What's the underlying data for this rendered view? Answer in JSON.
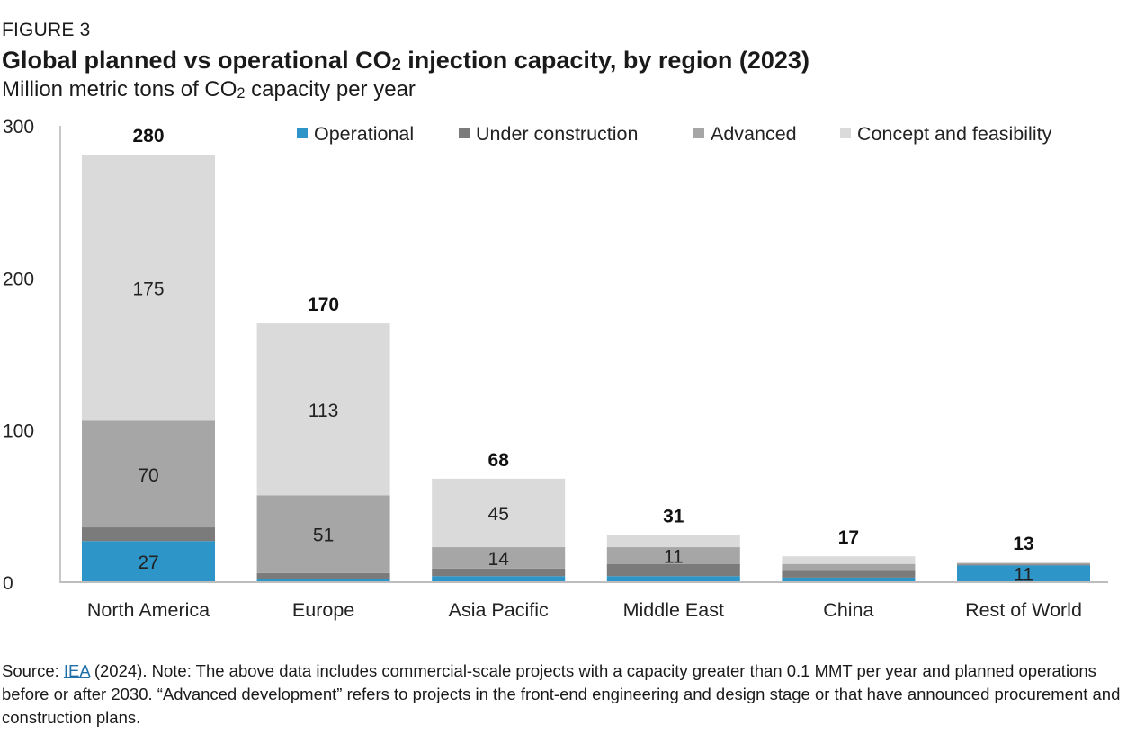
{
  "figure_label": "FIGURE 3",
  "title": {
    "pre": "Global planned vs operational CO",
    "sub": "2",
    "post": " injection capacity, by region (2023)"
  },
  "subtitle": {
    "pre": "Million metric tons of CO",
    "sub": "2",
    "post": " capacity per year"
  },
  "source": {
    "prefix": "Source: ",
    "link_text": "IEA",
    "rest": " (2024). Note: The above data includes commercial-scale projects with a capacity greater than 0.1 MMT per year and planned operations before or after 2030. “Advanced development” refers to projects in the front-end engineering and design stage or that have announced procurement and construction plans."
  },
  "chart_data": {
    "type": "bar",
    "stacked": true,
    "categories": [
      "North America",
      "Europe",
      "Asia Pacific",
      "Middle East",
      "China",
      "Rest of World"
    ],
    "series": [
      {
        "name": "Operational",
        "color": "#2e95c9",
        "values": [
          27,
          2,
          4,
          4,
          3,
          11
        ]
      },
      {
        "name": "Under construction",
        "color": "#7b7b7b",
        "values": [
          9,
          4,
          5,
          8,
          5,
          0.7
        ]
      },
      {
        "name": "Advanced",
        "color": "#a6a6a7",
        "values": [
          70,
          51,
          14,
          11,
          4,
          0.8
        ]
      },
      {
        "name": "Concept and feasibility",
        "color": "#dadada",
        "values": [
          175,
          113,
          45,
          8,
          5,
          0.5
        ]
      }
    ],
    "segment_labels": [
      [
        "27",
        "",
        "70",
        "175"
      ],
      [
        "",
        "",
        "51",
        "113"
      ],
      [
        "",
        "",
        "14",
        "45"
      ],
      [
        "",
        "",
        "11",
        ""
      ],
      [
        "",
        "",
        "",
        ""
      ],
      [
        "11",
        "",
        "",
        ""
      ]
    ],
    "totals": [
      "280",
      "170",
      "68",
      "31",
      "17",
      "13"
    ],
    "yticks": [
      "0",
      "100",
      "200",
      "300"
    ],
    "ylim": [
      0,
      300
    ],
    "grid": false,
    "legend_position": "top-right"
  }
}
